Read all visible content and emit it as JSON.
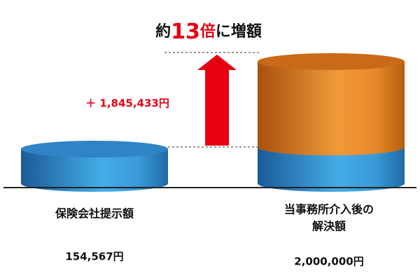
{
  "headline": {
    "prefix": "約",
    "multiplier": "13",
    "unit": "倍",
    "suffix": "に増額"
  },
  "difference": "＋ 1,845,433円",
  "left": {
    "label": "保険会社提示額",
    "amount": "154,567円"
  },
  "right": {
    "label_lines": [
      "当事務所介入後の",
      "解決額"
    ],
    "amount": "2,000,000円"
  }
}
